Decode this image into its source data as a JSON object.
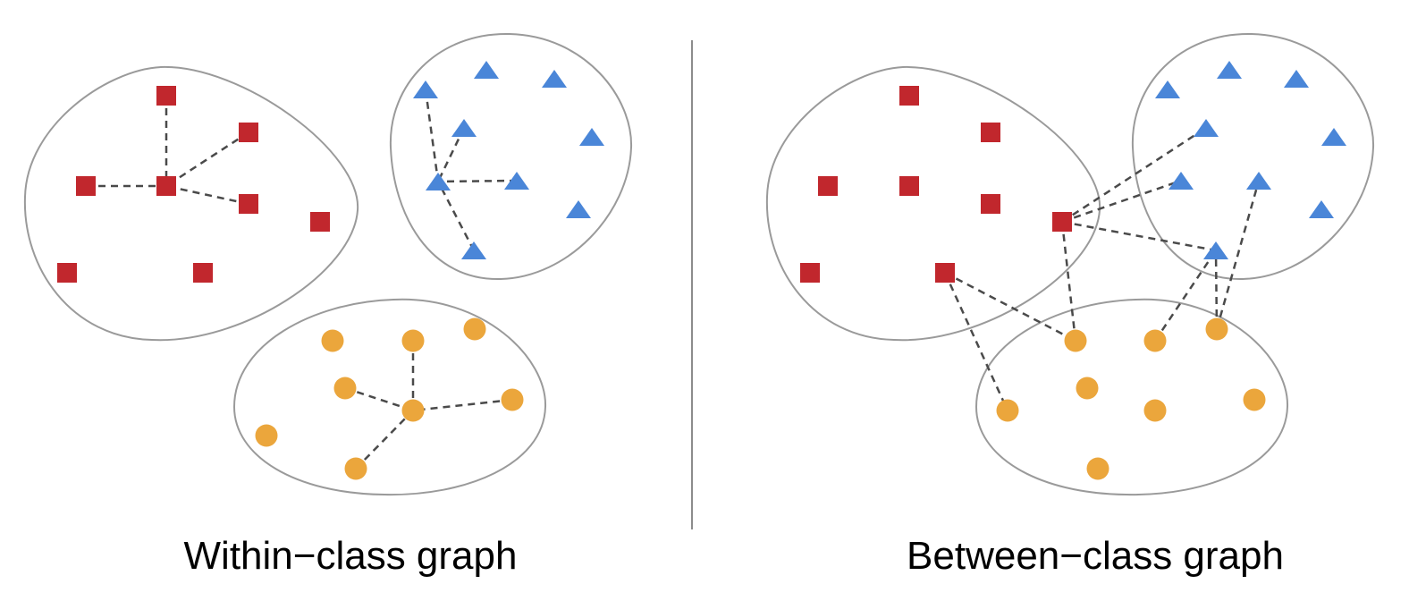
{
  "captions": {
    "left": "Within−class graph",
    "right": "Between−class graph"
  },
  "colors": {
    "square": "#c1272d",
    "triangle": "#4a86d8",
    "circle": "#eba63c",
    "edge": "#4a4a4a",
    "boundary": "#9a9a9a",
    "divider": "#8c8c8c"
  },
  "panels": [
    {
      "name": "within-class-graph",
      "caption_key": "left",
      "clusters": [
        "red-squares",
        "blue-triangles",
        "orange-circles"
      ],
      "edges_description": "each class connected only to its own class members"
    },
    {
      "name": "between-class-graph",
      "caption_key": "right",
      "clusters": [
        "red-squares",
        "blue-triangles",
        "orange-circles"
      ],
      "edges_description": "nodes connected to members of other classes"
    }
  ]
}
